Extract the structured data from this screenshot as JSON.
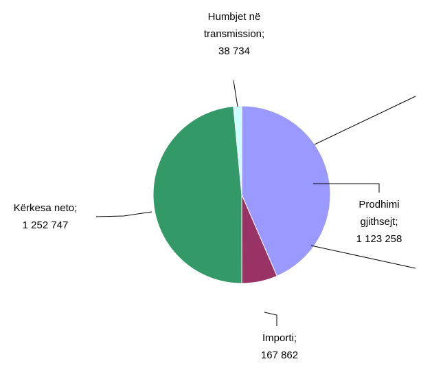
{
  "chart_data": {
    "type": "pie",
    "title": "",
    "slices": [
      {
        "label": "Prodhimi gjithsejt",
        "value": 1123258,
        "value_text": "1 123 258",
        "color": "#9999FF",
        "label_lines": [
          "Prodhimi",
          "gjithsejt;",
          "1 123 258"
        ]
      },
      {
        "label": "Importi",
        "value": 167862,
        "value_text": "167 862",
        "color": "#993366",
        "label_lines": [
          "Importi;",
          "167 862"
        ]
      },
      {
        "label": "Kërkesa neto",
        "value": 1252747,
        "value_text": "1 252 747",
        "color": "#339966",
        "label_lines": [
          "Kërkesa neto;",
          "1 252 747"
        ]
      },
      {
        "label": "Humbjet në transmission",
        "value": 38734,
        "value_text": "38 734",
        "color": "#CCFFFF",
        "label_lines": [
          "Humbjet në",
          "transmission;",
          "38 734"
        ]
      }
    ],
    "start_angle_deg": 0,
    "direction": "clockwise",
    "legend": "none",
    "data_labels": "category; value"
  }
}
